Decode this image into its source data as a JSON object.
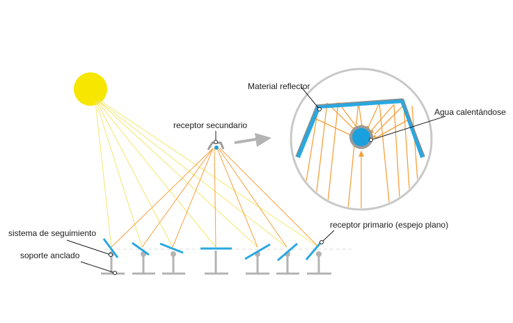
{
  "labels": {
    "secondary_receiver": "receptor secundario",
    "tracking_system": "sistema de seguimiento",
    "anchored_support": "soporte anclado",
    "primary_receiver": "receptor primario (espejo plano)",
    "reflective_material": "Material reflector",
    "heating_water": "Agua calentándose"
  },
  "colors": {
    "sun": "#f7e600",
    "sun_ray": "#f2e66b",
    "reflected_ray": "#f5a03c",
    "mirror": "#29a8e0",
    "support": "#b3b3b3",
    "arrow": "#b3b3b3",
    "circle_border": "#c8c8c8",
    "water": "#1aa0dc",
    "receiver_ring": "#9a9a9a",
    "leader_line": "#1a1a1a"
  },
  "icons": [
    "sun-icon",
    "arrow-right-icon",
    "mirror-icon"
  ]
}
